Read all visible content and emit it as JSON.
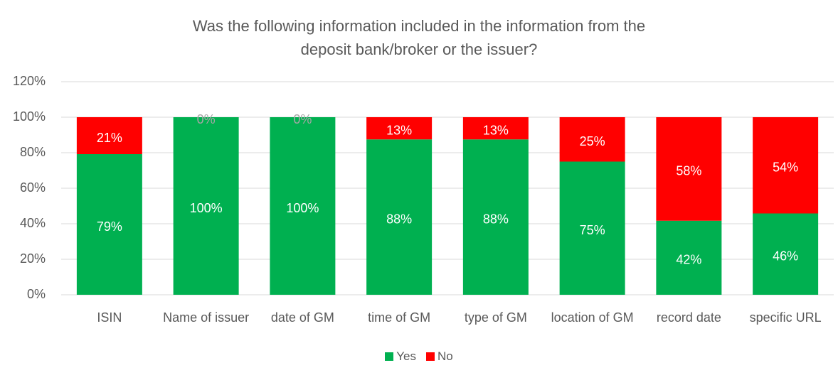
{
  "chart_data": {
    "type": "stacked_bar",
    "title": "Was the following information included in the information from the deposit bank/broker or the issuer?",
    "categories": [
      "ISIN",
      "Name of issuer",
      "date of GM",
      "time of GM",
      "type of GM",
      "location of GM",
      "record date",
      "specific URL"
    ],
    "series": [
      {
        "name": "Yes",
        "color": "#00b050",
        "values": [
          79.2,
          100,
          100,
          87.5,
          87.5,
          75,
          41.7,
          45.8
        ],
        "value_labels": [
          "79%",
          "100%",
          "100%",
          "88%",
          "88%",
          "75%",
          "42%",
          "46%"
        ]
      },
      {
        "name": "No",
        "color": "#ff0000",
        "values": [
          20.8,
          0,
          0,
          12.5,
          12.5,
          25,
          58.3,
          54.2
        ],
        "value_labels": [
          "21%",
          "0%",
          "0%",
          "13%",
          "13%",
          "25%",
          "58%",
          "54%"
        ]
      }
    ],
    "ylim": [
      0,
      120
    ],
    "yticks": [
      {
        "value": 0,
        "label": "0%"
      },
      {
        "value": 20,
        "label": "20%"
      },
      {
        "value": 40,
        "label": "40%"
      },
      {
        "value": 60,
        "label": "60%"
      },
      {
        "value": 80,
        "label": "80%"
      },
      {
        "value": 100,
        "label": "100%"
      },
      {
        "value": 120,
        "label": "120%"
      }
    ],
    "grid": true,
    "legend": "bottom"
  }
}
